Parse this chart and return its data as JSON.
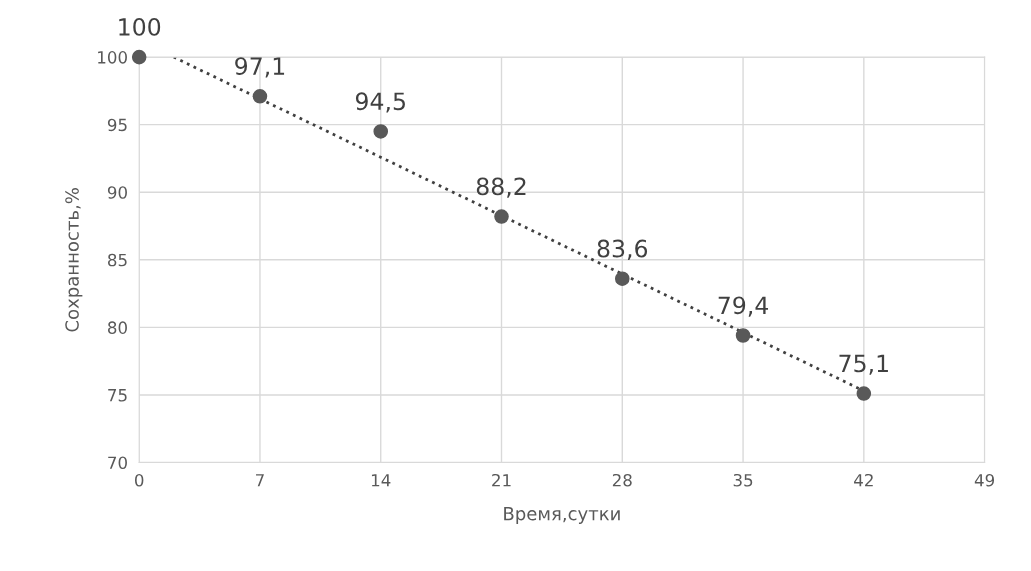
{
  "chart_data": {
    "type": "scatter",
    "xlabel": "Время,сутки",
    "ylabel": "Сохранность,%",
    "xlim": [
      0,
      49
    ],
    "xticks": [
      0,
      7,
      14,
      21,
      28,
      35,
      42,
      49
    ],
    "ylim": [
      70,
      100
    ],
    "yticks": [
      70,
      75,
      80,
      85,
      90,
      95,
      100
    ],
    "grid": true,
    "series": [
      {
        "color": "#595959",
        "marker": "circle",
        "x": [
          0,
          7,
          14,
          21,
          28,
          35,
          42
        ],
        "values": [
          100,
          97.1,
          94.5,
          88.2,
          83.6,
          79.4,
          75.1
        ],
        "value_labels": [
          "100",
          "97,1",
          "94,5",
          "88,2",
          "83,6",
          "79,4",
          "75,1"
        ]
      },
      {
        "type": "line",
        "color": "#404040",
        "line_style": "dotted",
        "marker": "none",
        "x": [
          2,
          42
        ],
        "values": [
          100,
          75.3
        ]
      }
    ]
  }
}
